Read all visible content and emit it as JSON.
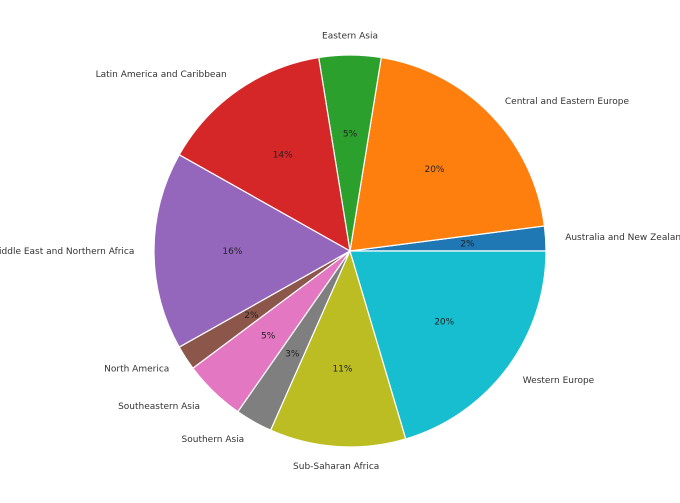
{
  "chart_data": {
    "type": "pie",
    "title": "",
    "categories": [
      "Australia and New Zealand",
      "Central and Eastern Europe",
      "Eastern Asia",
      "Latin America and Caribbean",
      "Middle East and Northern Africa",
      "North America",
      "Southeastern Asia",
      "Southern Asia",
      "Sub-Saharan Africa",
      "Western Europe"
    ],
    "values": [
      2,
      20,
      5,
      14,
      16,
      2,
      5,
      3,
      11,
      20
    ],
    "percent_labels": [
      "2%",
      "20%",
      "5%",
      "14%",
      "16%",
      "2%",
      "5%",
      "3%",
      "11%",
      "20%"
    ],
    "colors": [
      "#1f77b4",
      "#ff7f0e",
      "#2ca02c",
      "#d62728",
      "#9467bd",
      "#8c564b",
      "#e377c2",
      "#7f7f7f",
      "#bcbd22",
      "#17becf"
    ],
    "start_angle_deg": 0,
    "direction": "counterclockwise",
    "legend": "none"
  }
}
